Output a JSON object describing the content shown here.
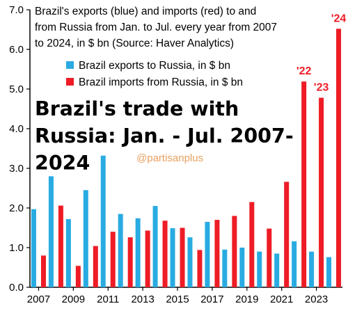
{
  "chart_data": {
    "type": "bar",
    "subtitle_lines": [
      "Brazil's exports (blue) and imports (red) to and",
      "from Russia from Jan. to Jul. every year from 2007",
      "to 2024, in $ bn (Source: Haver Analytics)"
    ],
    "headline_lines": [
      "Brazil's trade with",
      "Russia: Jan. - Jul. 2007-",
      "2024"
    ],
    "watermark": "@partisanplus",
    "categories": [
      2007,
      2008,
      2009,
      2010,
      2011,
      2012,
      2013,
      2014,
      2015,
      2016,
      2017,
      2018,
      2019,
      2020,
      2021,
      2022,
      2023,
      2024
    ],
    "series": [
      {
        "name": "Brazil exports to Russia, in $ bn",
        "color": "#29abe2",
        "values": [
          1.97,
          2.8,
          1.72,
          2.45,
          3.32,
          1.85,
          1.74,
          2.05,
          1.49,
          1.26,
          1.65,
          0.95,
          1.0,
          0.9,
          0.85,
          1.16,
          0.9,
          0.76
        ]
      },
      {
        "name": "Brazil imports from Russia, in $ bn",
        "color": "#ee1c25",
        "values": [
          0.8,
          2.06,
          0.54,
          1.04,
          1.4,
          1.26,
          1.43,
          1.68,
          1.5,
          0.94,
          1.7,
          1.8,
          2.15,
          1.48,
          2.66,
          5.19,
          4.78,
          6.52
        ]
      }
    ],
    "annotations": [
      "'22",
      "'23",
      "'24"
    ],
    "x_tick_labels": [
      "2007",
      "2009",
      "2011",
      "2013",
      "2015",
      "2017",
      "2019",
      "2021",
      "2023"
    ],
    "y_tick_labels": [
      "0.0",
      "1.0",
      "2.0",
      "3.0",
      "4.0",
      "5.0",
      "6.0",
      "7.0"
    ],
    "ylim": [
      0,
      7
    ],
    "grid": false,
    "legend": "top-left"
  }
}
